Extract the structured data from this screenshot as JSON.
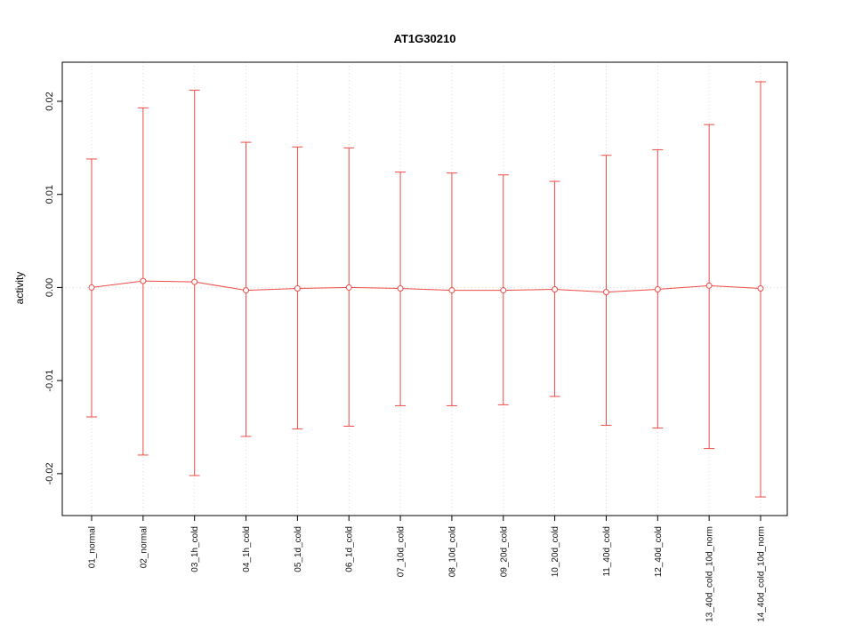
{
  "page": {
    "background": "#ffffff"
  },
  "chart_data": {
    "type": "errorbar-line",
    "title": "AT1G30210",
    "ylabel": "activity",
    "xlabel": "",
    "legend": null,
    "grid": {
      "vertical_per_category": true,
      "horizontal_zero_line": true,
      "style": "dotted"
    },
    "ylim": [
      -0.0245,
      0.0242
    ],
    "yticks": [
      -0.02,
      -0.01,
      0,
      0.01,
      0.02
    ],
    "ytick_labels": [
      "-0.02",
      "-0.01",
      "0.00",
      "0.01",
      "0.02"
    ],
    "categories": [
      "01_normal",
      "02_normal",
      "03_1h_cold",
      "04_1h_cold",
      "05_1d_cold",
      "06_1d_cold",
      "07_10d_cold",
      "08_10d_cold",
      "09_20d_cold",
      "10_20d_cold",
      "11_40d_cold",
      "12_40d_cold",
      "13_40d_cold_10d_norm",
      "14_40d_cold_10d_norm"
    ],
    "series": [
      {
        "name": "activity",
        "marker": "open-circle",
        "centers": [
          0.0,
          0.0007,
          0.0006,
          -0.0003,
          -0.0001,
          0.0,
          -0.0001,
          -0.0003,
          -0.0003,
          -0.0002,
          -0.0005,
          -0.0002,
          0.0002,
          -0.0001
        ],
        "upper": [
          0.0138,
          0.0193,
          0.0212,
          0.0156,
          0.0151,
          0.015,
          0.0124,
          0.0123,
          0.0121,
          0.0114,
          0.0142,
          0.0148,
          0.0175,
          0.0221
        ],
        "lower": [
          -0.0139,
          -0.018,
          -0.0202,
          -0.016,
          -0.0152,
          -0.0149,
          -0.0127,
          -0.0127,
          -0.0126,
          -0.0117,
          -0.0148,
          -0.0151,
          -0.0173,
          -0.0225
        ]
      }
    ],
    "colors": {
      "errorbar": "#ee4b47",
      "grid": "#d9d9d9",
      "axis": "#000000",
      "tick_label": "#111111",
      "marker_fill": "#ffffff"
    }
  }
}
